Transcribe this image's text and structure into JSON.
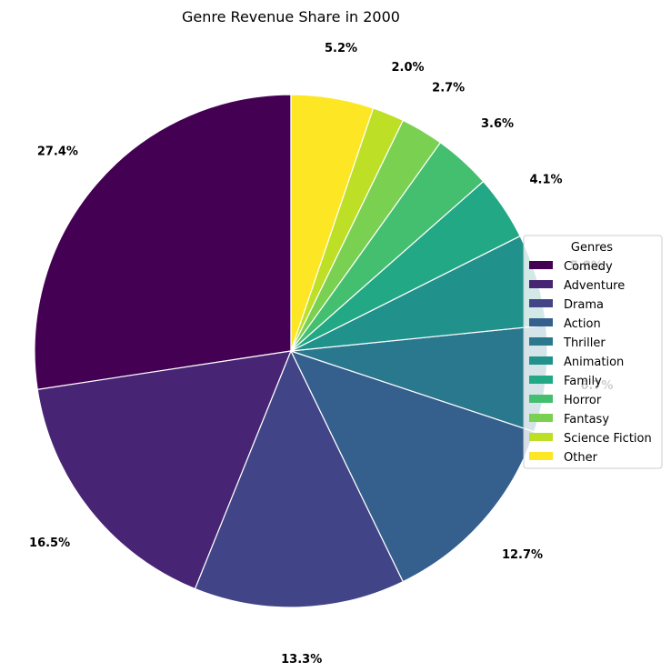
{
  "chart_data": {
    "type": "pie",
    "title": "Genre Revenue Share in 2000",
    "legend_title": "Genres",
    "legend_position": "right",
    "start_angle_deg": 90,
    "direction": "counterclockwise",
    "slices": [
      {
        "label": "Comedy",
        "value": 27.4,
        "pct_label": "27.4%",
        "color": "#440154"
      },
      {
        "label": "Adventure",
        "value": 16.5,
        "pct_label": "16.5%",
        "color": "#482475"
      },
      {
        "label": "Drama",
        "value": 13.3,
        "pct_label": "13.3%",
        "color": "#414487"
      },
      {
        "label": "Action",
        "value": 12.7,
        "pct_label": "12.7%",
        "color": "#355f8d"
      },
      {
        "label": "Thriller",
        "value": 6.7,
        "pct_label": "6.7%",
        "color": "#2a788e"
      },
      {
        "label": "Animation",
        "value": 5.8,
        "pct_label": "5.8%",
        "color": "#21918c"
      },
      {
        "label": "Family",
        "value": 4.1,
        "pct_label": "4.1%",
        "color": "#22a884"
      },
      {
        "label": "Horror",
        "value": 3.6,
        "pct_label": "3.6%",
        "color": "#44bf70"
      },
      {
        "label": "Fantasy",
        "value": 2.7,
        "pct_label": "2.7%",
        "color": "#7ad151"
      },
      {
        "label": "Science Fiction",
        "value": 2.0,
        "pct_label": "2.0%",
        "color": "#bddf26"
      },
      {
        "label": "Other",
        "value": 5.2,
        "pct_label": "5.2%",
        "color": "#fde725"
      }
    ]
  }
}
